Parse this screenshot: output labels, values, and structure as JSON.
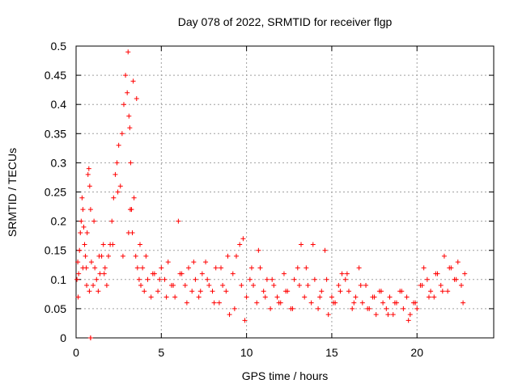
{
  "chart_data": {
    "type": "scatter",
    "title": "Day 078 of 2022, SRMTID for receiver flgp",
    "xlabel": "GPS time / hours",
    "ylabel": "SRMTID / TECUs",
    "xlim": [
      0,
      24.5
    ],
    "ylim": [
      0,
      0.5
    ],
    "xticks": [
      "0",
      "5",
      "10",
      "15",
      "20"
    ],
    "yticks": [
      "0",
      "0.05",
      "0.1",
      "0.15",
      "0.2",
      "0.25",
      "0.3",
      "0.35",
      "0.4",
      "0.45",
      "0.5"
    ],
    "grid": true,
    "marker": "+",
    "color": "#ff0000",
    "series": [
      {
        "x": [
          0.05,
          0.1,
          0.15,
          0.2,
          0.25,
          0.3,
          0.35,
          0.4,
          0.45,
          0.5,
          0.55,
          0.6,
          0.65,
          0.7,
          0.75,
          0.8,
          0.85,
          0.9,
          1.0,
          1.1,
          1.2,
          1.3,
          1.4,
          1.5,
          1.6,
          1.7,
          1.8,
          1.9,
          2.0,
          2.1,
          2.2,
          2.3,
          2.4,
          2.5,
          2.6,
          2.7,
          2.8,
          2.9,
          3.0,
          3.05,
          3.1,
          3.15,
          3.2,
          3.25,
          3.3,
          3.4,
          3.5,
          3.6,
          3.7,
          3.8,
          3.9,
          4.0,
          4.2,
          4.4,
          4.6,
          4.8,
          5.0,
          5.2,
          5.4,
          5.6,
          5.8,
          6.0,
          6.2,
          6.4,
          6.6,
          6.8,
          7.0,
          7.2,
          7.4,
          7.6,
          7.8,
          8.0,
          8.2,
          8.4,
          8.6,
          8.8,
          9.0,
          9.2,
          9.4,
          9.6,
          9.8,
          10.0,
          10.2,
          10.4,
          10.6,
          10.8,
          11.0,
          11.2,
          11.4,
          11.6,
          11.8,
          12.0,
          12.2,
          12.4,
          12.6,
          12.8,
          13.0,
          13.2,
          13.4,
          13.6,
          13.8,
          14.0,
          14.2,
          14.4,
          14.6,
          14.8,
          15.0,
          15.2,
          15.4,
          15.6,
          15.8,
          16.0,
          16.2,
          16.4,
          16.6,
          16.8,
          17.0,
          17.2,
          17.4,
          17.6,
          17.8,
          18.0,
          18.2,
          18.4,
          18.6,
          18.8,
          19.0,
          19.2,
          19.4,
          19.6,
          19.8,
          20.0,
          20.2,
          20.4,
          20.6,
          20.8,
          21.0,
          21.2,
          21.4,
          21.6,
          21.8,
          22.0,
          22.2,
          22.4,
          22.6,
          22.8,
          0.12,
          0.4,
          0.62,
          0.78,
          1.05,
          1.35,
          1.65,
          2.15,
          2.45,
          2.75,
          3.08,
          3.18,
          3.35,
          3.55,
          3.75,
          4.1,
          4.5,
          4.9,
          5.3,
          5.7,
          6.1,
          6.5,
          6.9,
          7.3,
          7.7,
          8.1,
          8.5,
          8.9,
          9.3,
          9.7,
          9.9,
          10.3,
          10.7,
          11.1,
          11.5,
          11.9,
          12.3,
          12.7,
          13.1,
          13.5,
          13.9,
          14.3,
          14.7,
          15.1,
          15.5,
          15.9,
          16.3,
          16.7,
          17.1,
          17.5,
          17.9,
          18.3,
          18.7,
          19.1,
          19.5,
          19.9,
          20.3,
          20.7,
          21.1,
          21.5,
          21.9,
          22.3,
          22.7,
          0.85,
          0.85
        ],
        "y": [
          0.1,
          0.13,
          0.11,
          0.15,
          0.18,
          0.2,
          0.24,
          0.22,
          0.19,
          0.16,
          0.14,
          0.12,
          0.18,
          0.28,
          0.29,
          0.26,
          0.22,
          0.13,
          0.09,
          0.12,
          0.1,
          0.08,
          0.11,
          0.14,
          0.16,
          0.12,
          0.09,
          0.14,
          0.16,
          0.2,
          0.24,
          0.28,
          0.3,
          0.33,
          0.26,
          0.35,
          0.4,
          0.45,
          0.42,
          0.49,
          0.38,
          0.36,
          0.3,
          0.22,
          0.18,
          0.24,
          0.14,
          0.12,
          0.1,
          0.09,
          0.12,
          0.08,
          0.1,
          0.07,
          0.11,
          0.08,
          0.12,
          0.1,
          0.13,
          0.09,
          0.07,
          0.2,
          0.11,
          0.09,
          0.12,
          0.08,
          0.1,
          0.07,
          0.11,
          0.13,
          0.09,
          0.08,
          0.12,
          0.06,
          0.09,
          0.08,
          0.04,
          0.11,
          0.14,
          0.16,
          0.17,
          0.07,
          0.1,
          0.09,
          0.06,
          0.12,
          0.08,
          0.1,
          0.05,
          0.09,
          0.07,
          0.06,
          0.11,
          0.08,
          0.05,
          0.1,
          0.12,
          0.16,
          0.07,
          0.09,
          0.06,
          0.1,
          0.05,
          0.08,
          0.15,
          0.04,
          0.07,
          0.06,
          0.09,
          0.11,
          0.1,
          0.08,
          0.05,
          0.07,
          0.12,
          0.06,
          0.09,
          0.05,
          0.07,
          0.04,
          0.08,
          0.06,
          0.05,
          0.07,
          0.04,
          0.06,
          0.08,
          0.05,
          0.07,
          0.04,
          0.06,
          0.05,
          0.09,
          0.12,
          0.1,
          0.08,
          0.07,
          0.11,
          0.09,
          0.14,
          0.08,
          0.12,
          0.1,
          0.13,
          0.09,
          0.11,
          0.07,
          0.12,
          0.09,
          0.08,
          0.2,
          0.14,
          0.11,
          0.16,
          0.25,
          0.14,
          0.18,
          0.22,
          0.44,
          0.41,
          0.16,
          0.14,
          0.11,
          0.1,
          0.07,
          0.09,
          0.11,
          0.06,
          0.13,
          0.08,
          0.1,
          0.06,
          0.12,
          0.14,
          0.05,
          0.09,
          0.03,
          0.12,
          0.15,
          0.07,
          0.1,
          0.06,
          0.08,
          0.05,
          0.09,
          0.12,
          0.16,
          0.07,
          0.1,
          0.06,
          0.08,
          0.11,
          0.06,
          0.09,
          0.05,
          0.07,
          0.08,
          0.04,
          0.06,
          0.08,
          0.03,
          0.06,
          0.09,
          0.07,
          0.11,
          0.08,
          0.12,
          0.1,
          0.06,
          0.0,
          0.0
        ]
      }
    ]
  }
}
